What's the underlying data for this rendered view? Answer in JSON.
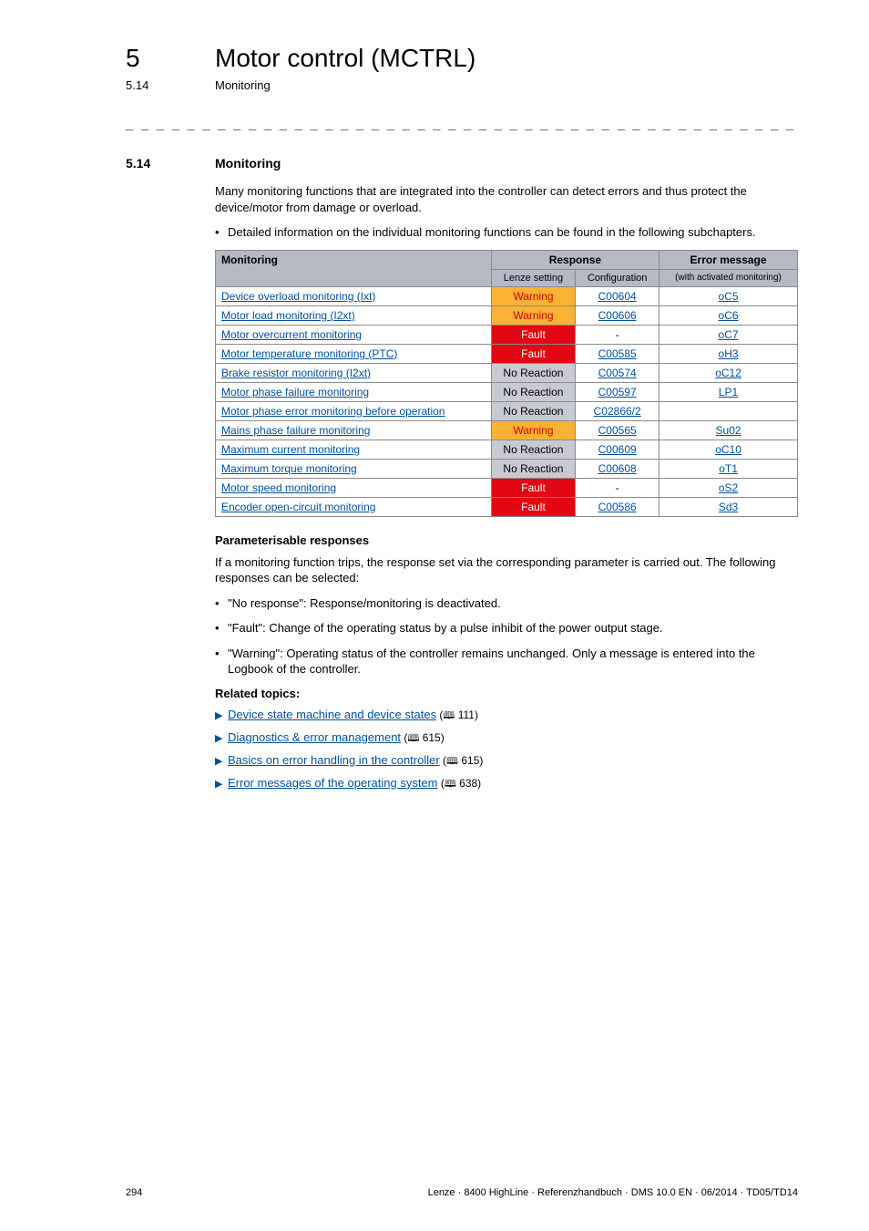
{
  "header": {
    "chapter_num": "5",
    "chapter_title": "Motor control (MCTRL)",
    "sub_num": "5.14",
    "sub_title": "Monitoring"
  },
  "dash_rule": "_ _ _ _ _ _ _ _ _ _ _ _ _ _ _ _ _ _ _ _ _ _ _ _ _ _ _ _ _ _ _ _ _ _ _ _ _ _ _ _ _ _ _ _ _ _ _ _ _ _ _ _ _ _ _ _ _ _ _ _ _ _ _ _",
  "section": {
    "num": "5.14",
    "title": "Monitoring"
  },
  "intro_para": "Many monitoring functions that are integrated into the controller can detect errors and thus protect the device/motor from damage or overload.",
  "intro_bullet": "Detailed information on the individual monitoring functions can be found in the following subchapters.",
  "table": {
    "headers": {
      "monitoring": "Monitoring",
      "response": "Response",
      "lenze": "Lenze setting",
      "config": "Configuration",
      "error": "Error message",
      "error_sub": "(with activated monitoring)"
    },
    "rows": [
      {
        "name": "Device overload monitoring (Ixt)",
        "resp": "Warning",
        "resp_class": "resp-warning",
        "cfg": "C00604",
        "cfg_link": true,
        "err": "oC5"
      },
      {
        "name": "Motor load monitoring (I2xt)",
        "resp": "Warning",
        "resp_class": "resp-warning",
        "cfg": "C00606",
        "cfg_link": true,
        "err": "oC6"
      },
      {
        "name": "Motor overcurrent monitoring",
        "resp": "Fault",
        "resp_class": "resp-fault",
        "cfg": "-",
        "cfg_link": false,
        "err": "oC7"
      },
      {
        "name": "Motor temperature monitoring (PTC)",
        "resp": "Fault",
        "resp_class": "resp-fault",
        "cfg": "C00585",
        "cfg_link": true,
        "err": "oH3"
      },
      {
        "name": "Brake resistor monitoring (I2xt)",
        "resp": "No Reaction",
        "resp_class": "resp-noreact",
        "cfg": "C00574",
        "cfg_link": true,
        "err": "oC12"
      },
      {
        "name": "Motor phase failure monitoring",
        "resp": "No Reaction",
        "resp_class": "resp-noreact",
        "cfg": "C00597",
        "cfg_link": true,
        "err": "LP1"
      },
      {
        "name": "Motor phase error monitoring before operation",
        "resp": "No Reaction",
        "resp_class": "resp-noreact",
        "cfg": "C02866/2",
        "cfg_link": true,
        "err": ""
      },
      {
        "name": "Mains phase failure monitoring",
        "resp": "Warning",
        "resp_class": "resp-warning",
        "cfg": "C00565",
        "cfg_link": true,
        "err": "Su02"
      },
      {
        "name": "Maximum current monitoring",
        "resp": "No Reaction",
        "resp_class": "resp-noreact",
        "cfg": "C00609",
        "cfg_link": true,
        "err": "oC10"
      },
      {
        "name": "Maximum torque monitoring",
        "resp": "No Reaction",
        "resp_class": "resp-noreact",
        "cfg": "C00608",
        "cfg_link": true,
        "err": "oT1"
      },
      {
        "name": "Motor speed monitoring",
        "resp": "Fault",
        "resp_class": "resp-fault",
        "cfg": "-",
        "cfg_link": false,
        "err": "oS2"
      },
      {
        "name": "Encoder open-circuit monitoring",
        "resp": "Fault",
        "resp_class": "resp-fault",
        "cfg": "C00586",
        "cfg_link": true,
        "err": "Sd3"
      }
    ]
  },
  "param_title": "Parameterisable responses",
  "param_para": "If a monitoring function trips, the response set via the corresponding parameter is carried out. The following responses can be selected:",
  "param_bullets": [
    "\"No response\": Response/monitoring is deactivated.",
    "\"Fault\": Change of the operating status by a pulse inhibit of the power output stage.",
    "\"Warning\": Operating status of the controller remains unchanged. Only a message is entered into the Logbook of the controller."
  ],
  "related_title": "Related topics:",
  "related": [
    {
      "text": "Device state machine and device states",
      "page": "111"
    },
    {
      "text": "Diagnostics & error management",
      "page": "615"
    },
    {
      "text": "Basics on error handling in the controller",
      "page": "615"
    },
    {
      "text": "Error messages of the operating system",
      "page": "638"
    }
  ],
  "footer": {
    "page": "294",
    "doc": "Lenze · 8400 HighLine · Referenzhandbuch · DMS 10.0 EN · 06/2014 · TD05/TD14"
  }
}
